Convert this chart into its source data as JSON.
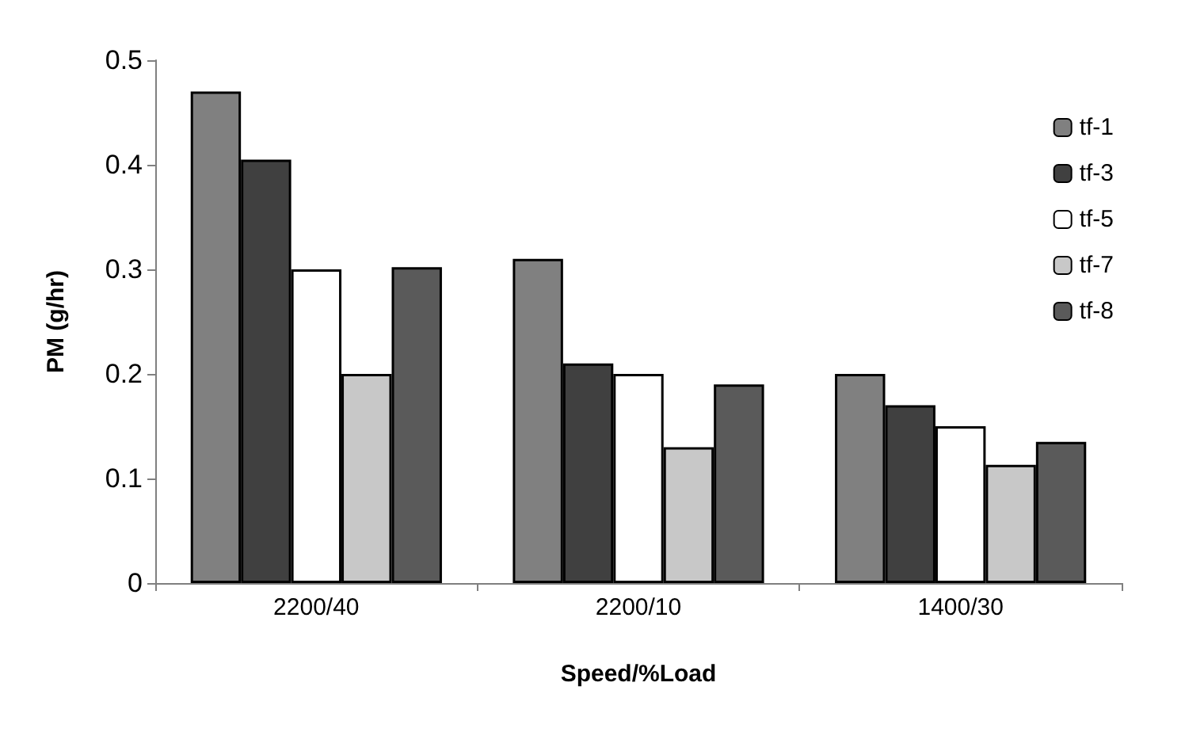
{
  "chart_data": {
    "type": "bar",
    "xlabel": "Speed/%Load",
    "ylabel": "PM (g/hr)",
    "categories": [
      "2200/40",
      "2200/10",
      "1400/30"
    ],
    "series": [
      {
        "name": "tf-1",
        "color": "#808080",
        "values": [
          0.47,
          0.31,
          0.2
        ]
      },
      {
        "name": "tf-3",
        "color": "#404040",
        "values": [
          0.405,
          0.21,
          0.17
        ]
      },
      {
        "name": "tf-5",
        "color": "#ffffff",
        "values": [
          0.3,
          0.2,
          0.15
        ]
      },
      {
        "name": "tf-7",
        "color": "#c8c8c8",
        "values": [
          0.2,
          0.13,
          0.113
        ]
      },
      {
        "name": "tf-8",
        "color": "#5a5a5a",
        "values": [
          0.302,
          0.19,
          0.135
        ]
      }
    ],
    "ylim": [
      0,
      0.5
    ],
    "yticks": [
      0,
      0.1,
      0.2,
      0.3,
      0.4,
      0.5
    ],
    "grid": false,
    "legend": "right"
  }
}
